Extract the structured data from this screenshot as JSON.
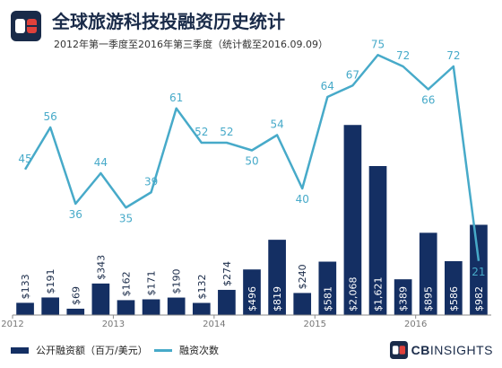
{
  "header": {
    "title": "全球旅游科技投融资历史统计",
    "subtitle": "2012年第一季度至2016年第三季度（统计截至2016.09.09）"
  },
  "legend": {
    "bar_label": "公开融资额（百万/美元）",
    "line_label": "融资次数"
  },
  "brand": {
    "prefix": "CB",
    "name": "INSIGHTS"
  },
  "colors": {
    "bar": "#142f63",
    "line": "#47aac9",
    "axis": "#8a8a8a"
  },
  "chart_data": {
    "type": "bar",
    "x_labels": [
      "2012",
      "",
      "",
      "",
      "2013",
      "",
      "",
      "",
      "2014",
      "",
      "",
      "",
      "2015",
      "",
      "",
      "",
      "2016",
      "",
      ""
    ],
    "year_ticks": [
      "2012",
      "2013",
      "2014",
      "2015",
      "2016"
    ],
    "series": [
      {
        "name": "公开融资额（百万/美元）",
        "kind": "bar",
        "values": [
          133,
          191,
          69,
          343,
          162,
          171,
          190,
          132,
          274,
          496,
          819,
          240,
          581,
          2068,
          1621,
          389,
          895,
          586,
          982
        ],
        "labels": [
          "$133",
          "$191",
          "$69",
          "$343",
          "$162",
          "$171",
          "$190",
          "$132",
          "$274",
          "$496",
          "$819",
          "$240",
          "$581",
          "$2,068",
          "$1,621",
          "$389",
          "$895",
          "$586",
          "$982"
        ]
      },
      {
        "name": "融资次数",
        "kind": "line",
        "values": [
          45,
          56,
          36,
          44,
          35,
          39,
          61,
          52,
          52,
          50,
          54,
          40,
          64,
          67,
          75,
          72,
          66,
          72,
          21
        ]
      }
    ],
    "bar_max": 2500,
    "line_range": [
      0,
      80
    ]
  }
}
